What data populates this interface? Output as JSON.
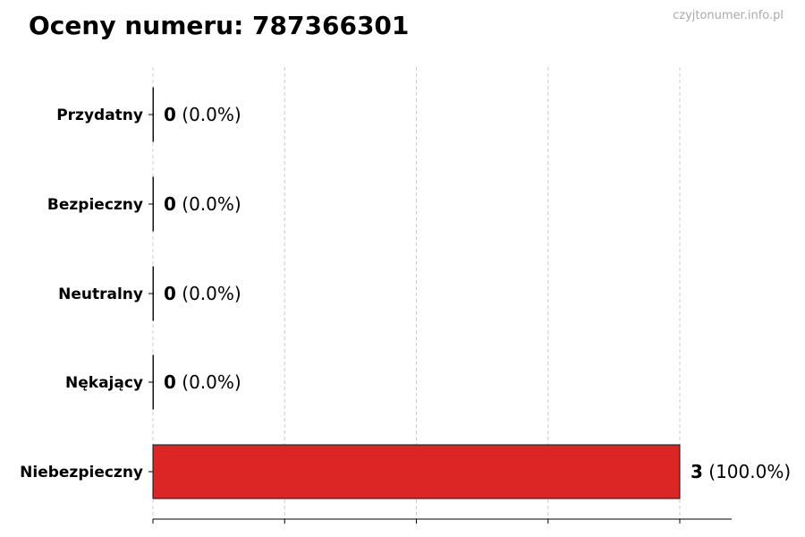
{
  "title": "Oceny numeru: 787366301",
  "watermark": "czyjtonumer.info.pl",
  "chart_data": {
    "type": "bar",
    "orientation": "horizontal",
    "title": "Oceny numeru: 787366301",
    "categories": [
      "Przydatny",
      "Bezpieczny",
      "Neutralny",
      "Nękający",
      "Niebezpieczny"
    ],
    "values": [
      0,
      0,
      0,
      0,
      3
    ],
    "percent_labels": [
      "(0.0%)",
      "(0.0%)",
      "(0.0%)",
      "(0.0%)",
      "(100.0%)"
    ],
    "colors": [
      "#2ca02c",
      "#1f77b4",
      "#7f7f7f",
      "#ff7f0e",
      "#dc2626"
    ],
    "xlim": [
      0,
      3.3
    ],
    "xticks": [
      0,
      0.75,
      1.5,
      2.25,
      3
    ],
    "grid": "x, dashed",
    "xlabel": "",
    "ylabel": ""
  }
}
